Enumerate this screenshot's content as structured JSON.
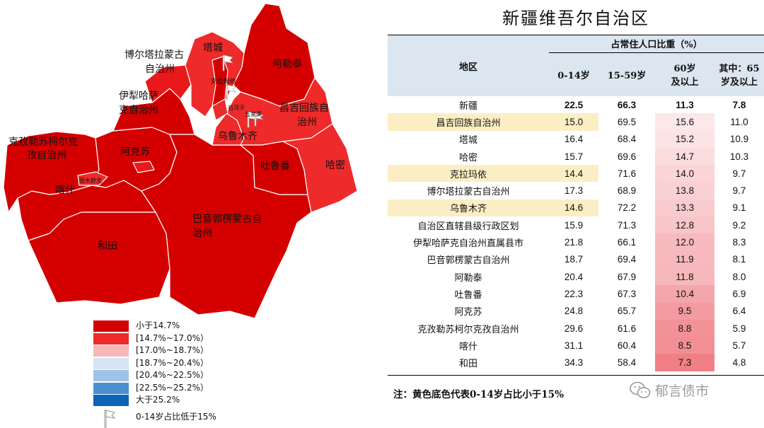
{
  "map": {
    "labels": [
      {
        "key": "tacheng",
        "text": "塔城"
      },
      {
        "key": "aletai",
        "text": "阿勒泰"
      },
      {
        "key": "boertala1",
        "text": "博尔塔拉蒙古"
      },
      {
        "key": "boertala2",
        "text": "自治州"
      },
      {
        "key": "yili1",
        "text": "伊犁哈萨"
      },
      {
        "key": "yili2",
        "text": "克自治州"
      },
      {
        "key": "kezhou1",
        "text": "克孜勒苏柯尔克"
      },
      {
        "key": "kezhou2",
        "text": "孜自治州"
      },
      {
        "key": "akesu",
        "text": "阿克苏"
      },
      {
        "key": "kashi",
        "text": "喀什"
      },
      {
        "key": "hetian",
        "text": "和田"
      },
      {
        "key": "changji1",
        "text": "昌吉回族自"
      },
      {
        "key": "changji2",
        "text": "治州"
      },
      {
        "key": "wulumuqi",
        "text": "乌鲁木齐"
      },
      {
        "key": "tulufan",
        "text": "吐鲁番"
      },
      {
        "key": "hami",
        "text": "哈密"
      },
      {
        "key": "bayin1",
        "text": "巴音郭楞蒙古自"
      },
      {
        "key": "bayin2",
        "text": "治州"
      },
      {
        "key": "kelamayi",
        "text": "克拉玛依"
      },
      {
        "key": "tumushuke",
        "text": "图木舒克"
      },
      {
        "key": "shihezi",
        "text": "石河子"
      },
      {
        "key": "wujiaqu",
        "text": "五家渠"
      }
    ]
  },
  "legend": {
    "items": [
      {
        "label": "小于14.7%",
        "color": "#d40000"
      },
      {
        "label": "[14.7%~17.0%）",
        "color": "#ee2a2a"
      },
      {
        "label": "[17.0%~18.7%）",
        "color": "#f6b8b8"
      },
      {
        "label": "[18.7%~20.4%）",
        "color": "#d6e4f4"
      },
      {
        "label": "[20.4%~22.5%）",
        "color": "#9ec3e6"
      },
      {
        "label": "[22.5%~25.2%）",
        "color": "#4a90d0"
      },
      {
        "label": "大于25.2%",
        "color": "#0b64b6"
      }
    ],
    "flag_label": "0-14岁占比低于15%"
  },
  "table": {
    "title": "新疆维吾尔自治区",
    "group_header": "占常住人口比重（%）",
    "col_region": "地区",
    "col_0_14": "0-14岁",
    "col_15_59": "15-59岁",
    "col_60_a": "60岁",
    "col_60_b": "及以上",
    "col_65_a": "其中：65",
    "col_65_b": "岁及以上"
  },
  "chart_data": {
    "type": "table",
    "title": "新疆维吾尔自治区",
    "columns": [
      "地区",
      "0-14岁",
      "15-59岁",
      "60岁及以上",
      "其中：65岁及以上"
    ],
    "rows": [
      {
        "region": "新疆",
        "a0_14": "22.5",
        "a15_59": "66.3",
        "a60": "11.3",
        "a65": "7.8",
        "highlight": false
      },
      {
        "region": "昌吉回族自治州",
        "a0_14": "15.0",
        "a15_59": "69.5",
        "a60": "15.6",
        "a65": "11.0",
        "highlight": true
      },
      {
        "region": "塔城",
        "a0_14": "16.4",
        "a15_59": "68.4",
        "a60": "15.2",
        "a65": "10.9",
        "highlight": false
      },
      {
        "region": "哈密",
        "a0_14": "15.7",
        "a15_59": "69.6",
        "a60": "14.7",
        "a65": "10.3",
        "highlight": false
      },
      {
        "region": "克拉玛依",
        "a0_14": "14.4",
        "a15_59": "71.6",
        "a60": "14.0",
        "a65": "9.7",
        "highlight": true
      },
      {
        "region": "博尔塔拉蒙古自治州",
        "a0_14": "17.3",
        "a15_59": "68.9",
        "a60": "13.8",
        "a65": "9.7",
        "highlight": false
      },
      {
        "region": "乌鲁木齐",
        "a0_14": "14.6",
        "a15_59": "72.2",
        "a60": "13.3",
        "a65": "9.1",
        "highlight": true
      },
      {
        "region": "自治区直辖县级行政区划",
        "a0_14": "15.9",
        "a15_59": "71.3",
        "a60": "12.8",
        "a65": "9.2",
        "highlight": false
      },
      {
        "region": "伊犁哈萨克自治州直属县市",
        "a0_14": "21.8",
        "a15_59": "66.1",
        "a60": "12.0",
        "a65": "8.3",
        "highlight": false
      },
      {
        "region": "巴音郭楞蒙古自治州",
        "a0_14": "18.7",
        "a15_59": "69.4",
        "a60": "11.9",
        "a65": "8.1",
        "highlight": false
      },
      {
        "region": "阿勒泰",
        "a0_14": "20.4",
        "a15_59": "67.9",
        "a60": "11.8",
        "a65": "8.0",
        "highlight": false
      },
      {
        "region": "吐鲁番",
        "a0_14": "22.3",
        "a15_59": "67.3",
        "a60": "10.4",
        "a65": "6.9",
        "highlight": false
      },
      {
        "region": "阿克苏",
        "a0_14": "24.8",
        "a15_59": "65.7",
        "a60": "9.5",
        "a65": "6.4",
        "highlight": false
      },
      {
        "region": "克孜勒苏柯尔克孜自治州",
        "a0_14": "29.6",
        "a15_59": "61.6",
        "a60": "8.8",
        "a65": "5.9",
        "highlight": false
      },
      {
        "region": "喀什",
        "a0_14": "31.1",
        "a15_59": "60.4",
        "a60": "8.5",
        "a65": "5.7",
        "highlight": false
      },
      {
        "region": "和田",
        "a0_14": "34.3",
        "a15_59": "58.4",
        "a60": "7.3",
        "a65": "4.8",
        "highlight": false
      }
    ],
    "heat_color": "#e8404a"
  },
  "note": "注：黄色底色代表0-14岁占比小于15%",
  "watermark": "郁言债市"
}
